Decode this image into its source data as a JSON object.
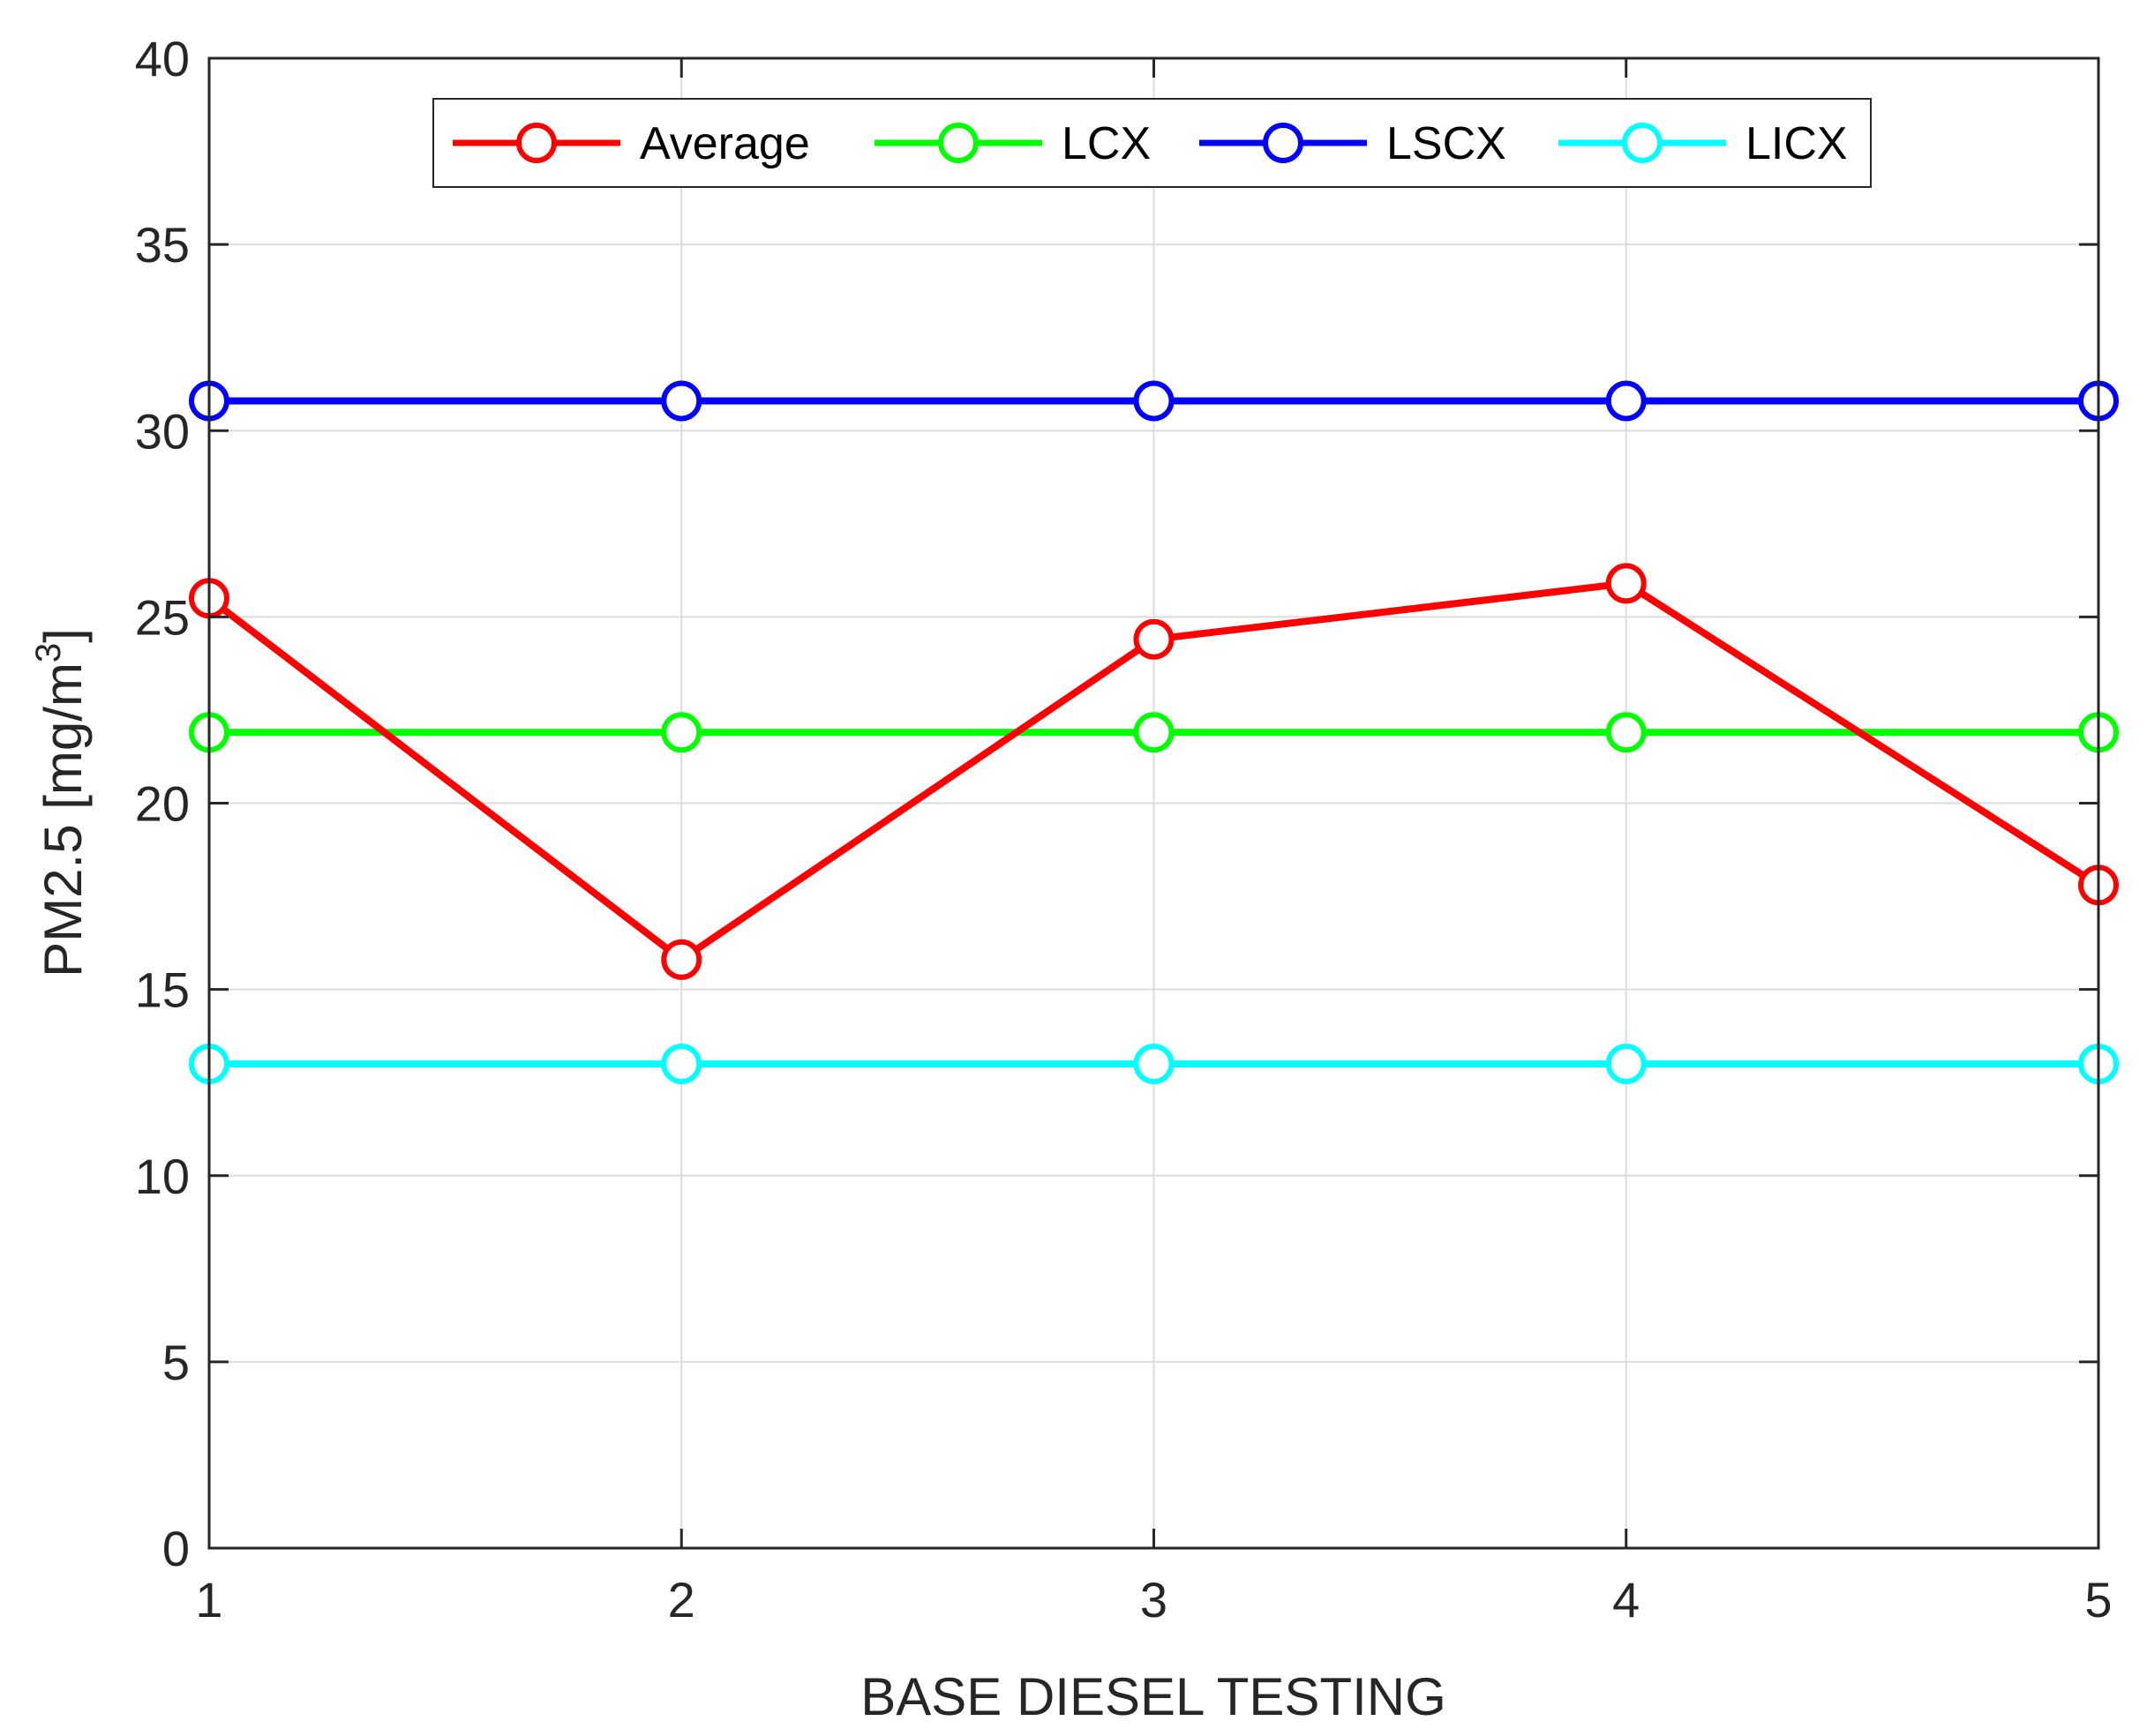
{
  "chart_data": {
    "type": "line",
    "title": "",
    "xlabel": "BASE DIESEL TESTING",
    "ylabel_main": "PM2.5 [mg/m",
    "ylabel_sup": "3",
    "ylabel_close": "]",
    "x": [
      1,
      2,
      3,
      4,
      5
    ],
    "xlim": [
      1,
      5
    ],
    "ylim": [
      0,
      40
    ],
    "xticks": [
      "1",
      "2",
      "3",
      "4",
      "5"
    ],
    "yticks": [
      "0",
      "5",
      "10",
      "15",
      "20",
      "25",
      "30",
      "35",
      "40"
    ],
    "grid": true,
    "legend_position": "top-center",
    "series": [
      {
        "name": "Average",
        "color": "#ff0000",
        "values": [
          25.5,
          15.8,
          24.4,
          25.9,
          17.8
        ]
      },
      {
        "name": "LCX",
        "color": "#00ff00",
        "values": [
          21.9,
          21.9,
          21.9,
          21.9,
          21.9
        ]
      },
      {
        "name": "LSCX",
        "color": "#0000ff",
        "values": [
          30.8,
          30.8,
          30.8,
          30.8,
          30.8
        ]
      },
      {
        "name": "LICX",
        "color": "#00ffff",
        "values": [
          13.0,
          13.0,
          13.0,
          13.0,
          13.0
        ]
      }
    ]
  }
}
